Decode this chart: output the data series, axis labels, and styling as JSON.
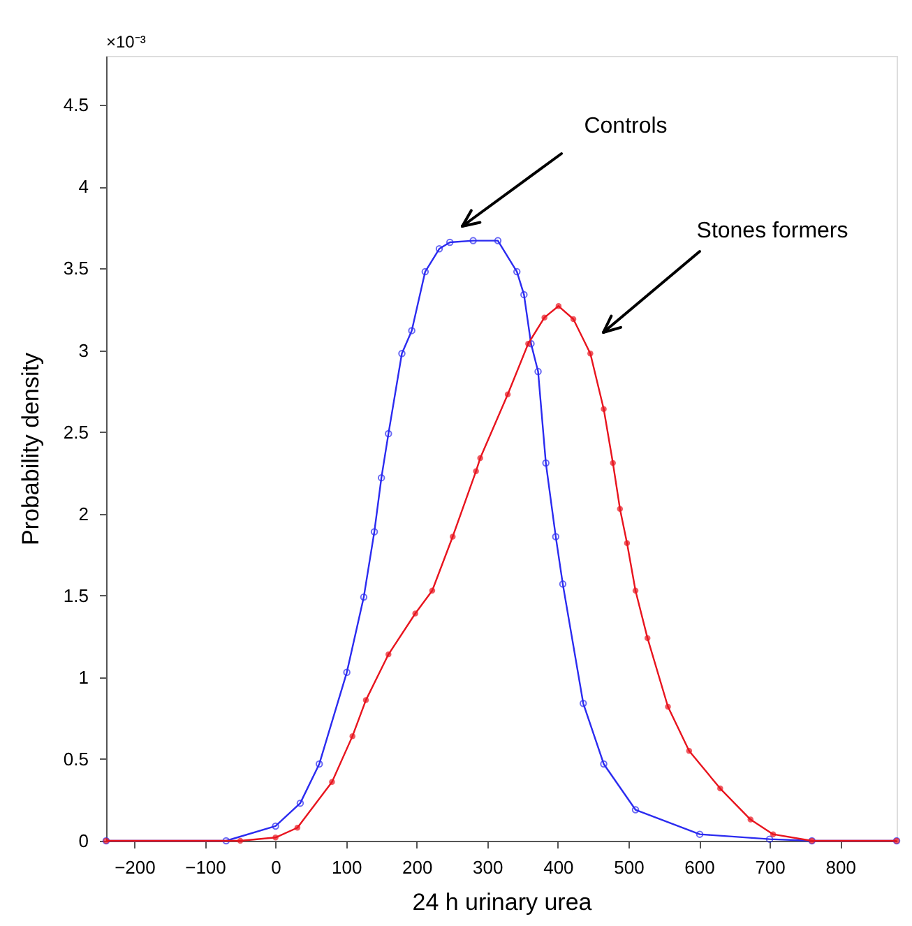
{
  "chart_data": {
    "type": "line",
    "xlabel": "24 h urinary urea",
    "ylabel": "Probability density",
    "xlim": [
      -240,
      880
    ],
    "ylim": [
      0,
      4.8
    ],
    "xticks": [
      -200,
      -100,
      0,
      100,
      200,
      300,
      400,
      500,
      600,
      700,
      800
    ],
    "yticks": [
      0,
      0.5,
      1,
      1.5,
      2,
      2.5,
      3,
      3.5,
      4,
      4.5
    ],
    "marker": "circle",
    "grid": false,
    "series": [
      {
        "color": "#2b2bf0",
        "x": [
          -240,
          -70,
          0,
          35,
          62,
          101,
          125,
          140,
          150,
          160,
          179,
          193,
          212,
          232,
          247,
          280,
          315,
          342,
          352,
          362,
          372,
          383,
          397,
          407,
          436,
          465,
          510,
          601,
          700,
          760,
          880
        ],
        "values": [
          0,
          0,
          0.09,
          0.23,
          0.47,
          1.03,
          1.49,
          1.89,
          2.22,
          2.49,
          2.98,
          3.12,
          3.48,
          3.62,
          3.66,
          3.67,
          3.67,
          3.48,
          3.34,
          3.04,
          2.87,
          2.31,
          1.86,
          1.57,
          0.84,
          0.47,
          0.19,
          0.04,
          0.01,
          0,
          0
        ]
      },
      {
        "color": "#e8141e",
        "x": [
          -240,
          -50,
          0,
          31,
          80,
          109,
          128,
          160,
          198,
          222,
          251,
          284,
          290,
          329,
          358,
          381,
          401,
          422,
          446,
          465,
          478,
          488,
          498,
          510,
          527,
          556,
          586,
          630,
          673,
          705,
          760,
          880
        ],
        "values": [
          0,
          0,
          0.02,
          0.08,
          0.36,
          0.64,
          0.86,
          1.14,
          1.39,
          1.53,
          1.86,
          2.26,
          2.34,
          2.73,
          3.04,
          3.2,
          3.27,
          3.19,
          2.98,
          2.64,
          2.31,
          2.03,
          1.82,
          1.53,
          1.24,
          0.82,
          0.55,
          0.32,
          0.13,
          0.04,
          0,
          0
        ]
      }
    ],
    "annotations": [
      "×10⁻³",
      "Controls",
      "Stones formers"
    ]
  }
}
